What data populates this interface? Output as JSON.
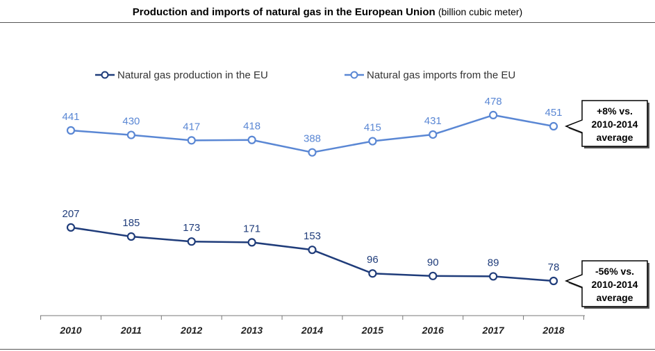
{
  "chart_data": {
    "type": "line",
    "title": "Production and imports of natural gas in the European Union",
    "subtitle": "(billion cubic meter)",
    "categories": [
      "2010",
      "2011",
      "2012",
      "2013",
      "2014",
      "2015",
      "2016",
      "2017",
      "2018"
    ],
    "series": [
      {
        "name": "Natural gas production in the EU",
        "color": "#1f3c7a",
        "values": [
          207,
          185,
          173,
          171,
          153,
          96,
          90,
          89,
          78
        ]
      },
      {
        "name": "Natural gas imports from the EU",
        "color": "#5a87d4",
        "values": [
          441,
          430,
          417,
          418,
          388,
          415,
          431,
          478,
          451
        ]
      }
    ],
    "legend_placement": "top-center",
    "grid": false,
    "ylim": [
      20,
      560
    ],
    "annotations": [
      {
        "series": 1,
        "lines": [
          "+8% vs.",
          "2010-2014",
          "average"
        ]
      },
      {
        "series": 0,
        "lines": [
          "-56% vs.",
          "2010-2014",
          "average"
        ]
      }
    ]
  }
}
